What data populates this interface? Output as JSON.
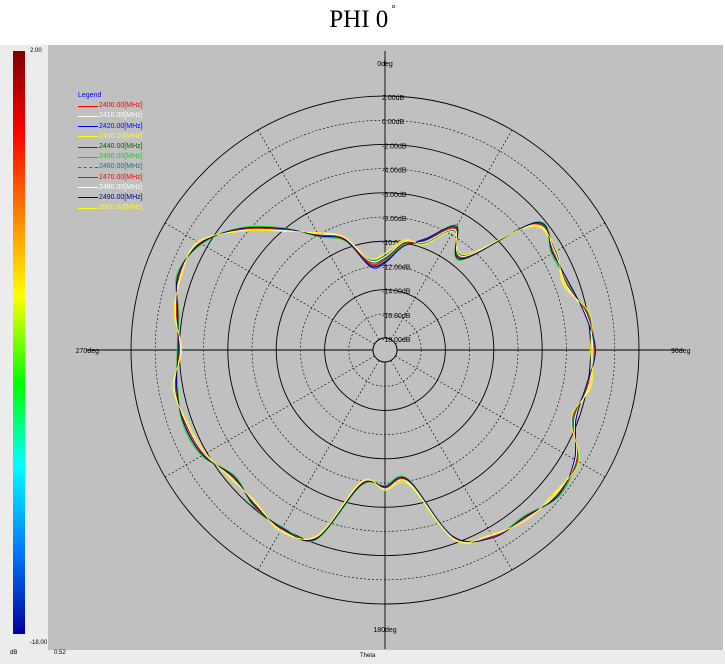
{
  "header": {
    "title": "PHI 0",
    "degree_symbol": "°"
  },
  "scale": {
    "max_label": "2.00",
    "min_label": "-18.00",
    "unit_label": "dB",
    "bottom_value": "0.52"
  },
  "footer": {
    "axis_label": "Theta"
  },
  "chart_data": {
    "type": "polar-line",
    "title": "PHI 0",
    "theta_label": "Theta",
    "angle_labels": [
      "0deg",
      "90deg",
      "180deg",
      "270deg"
    ],
    "r_axis_labels": [
      "2.00dB",
      "0.00dB",
      "-2.00dB",
      "-4.00dB",
      "-6.00dB",
      "-8.00dB",
      "-10.00dB",
      "-12.00dB",
      "-14.00dB",
      "-16.00dB",
      "-18.00dB"
    ],
    "r_range": [
      -18,
      2
    ],
    "grid": true,
    "legend": {
      "title": "Legend",
      "placement": "top-left"
    },
    "theta_deg": [
      0,
      10,
      20,
      30,
      40,
      50,
      60,
      70,
      80,
      90,
      100,
      110,
      120,
      130,
      140,
      150,
      160,
      170,
      180,
      190,
      200,
      210,
      220,
      230,
      240,
      250,
      260,
      270,
      280,
      290,
      300,
      310,
      320,
      330,
      340,
      350
    ],
    "series": [
      {
        "name": "2400.00[MHz]",
        "color": "#ff0000",
        "values": [
          -11.5,
          -10,
          -9.5,
          -7.4,
          -9,
          -2.8,
          -2.8,
          -3,
          -2,
          -1.8,
          -1.9,
          -2.4,
          -0.7,
          -0.4,
          -0.9,
          -1.2,
          -2.5,
          -8,
          -7.6,
          -7.8,
          -2.5,
          -1.9,
          -2.3,
          -2.6,
          -1.7,
          -1.4,
          -1.4,
          -2,
          -1.5,
          -0.9,
          -1.3,
          -3.5,
          -6,
          -8,
          -9.2,
          -11.8
        ]
      },
      {
        "name": "2410.00[MHz]",
        "color": "#ffffff",
        "values": [
          -11.3,
          -10.2,
          -9.4,
          -7.6,
          -8.8,
          -2.9,
          -2.7,
          -3.1,
          -2.1,
          -1.7,
          -2,
          -2.3,
          -0.8,
          -0.5,
          -0.8,
          -1.3,
          -2.4,
          -7.9,
          -7.5,
          -7.9,
          -2.6,
          -1.8,
          -2.4,
          -2.5,
          -1.8,
          -1.5,
          -1.3,
          -2.1,
          -1.4,
          -1,
          -1.2,
          -3.6,
          -6.1,
          -7.9,
          -9.1,
          -11.7
        ]
      },
      {
        "name": "2420.00[MHz]",
        "color": "#0000ff",
        "values": [
          -11.8,
          -10.3,
          -9.2,
          -7.2,
          -9.2,
          -2.6,
          -3,
          -2.8,
          -2.2,
          -1.6,
          -2.1,
          -2.2,
          -0.9,
          -0.3,
          -1,
          -1.1,
          -2.6,
          -8.1,
          -7.7,
          -7.7,
          -2.4,
          -2,
          -2.2,
          -2.7,
          -1.6,
          -1.3,
          -1.5,
          -1.9,
          -1.6,
          -0.8,
          -1.4,
          -3.4,
          -5.9,
          -8.1,
          -9.3,
          -12
        ]
      },
      {
        "name": "2430.00[MHz]",
        "color": "#ffff00",
        "values": [
          -11,
          -9.8,
          -9.6,
          -7.5,
          -8.9,
          -3,
          -2.9,
          -3.2,
          -1.9,
          -1.9,
          -1.8,
          -2.5,
          -0.6,
          -0.6,
          -0.8,
          -1.3,
          -2.3,
          -7.8,
          -7.5,
          -7.9,
          -2.6,
          -1.8,
          -2.4,
          -2.5,
          -1.8,
          -1.5,
          -1.3,
          -2.1,
          -1.4,
          -1,
          -1.2,
          -3.6,
          -6.1,
          -7.9,
          -9.1,
          -11.5
        ]
      },
      {
        "name": "2440.00[MHz]",
        "color": "#006400",
        "values": [
          -11.4,
          -10.1,
          -9.5,
          -7.3,
          -9.1,
          -2.7,
          -2.8,
          -3,
          -2,
          -1.7,
          -2,
          -2.4,
          -0.7,
          -0.4,
          -0.9,
          -1.2,
          -2.5,
          -8,
          -7.6,
          -7.8,
          -2.5,
          -1.9,
          -2.3,
          -2.6,
          -1.7,
          -1.4,
          -1.4,
          -2,
          -1.5,
          -0.9,
          -1.3,
          -3.5,
          -6,
          -8,
          -9.2,
          -11.6
        ]
      },
      {
        "name": "2450.00[MHz]",
        "color": "#00e000",
        "values": [
          -11.6,
          -10.2,
          -9.3,
          -7.1,
          -9.3,
          -2.5,
          -3.1,
          -2.9,
          -2.1,
          -1.6,
          -2.1,
          -2.3,
          -0.8,
          -0.2,
          -1.1,
          -1.1,
          -2.6,
          -8.2,
          -7.8,
          -7.6,
          -2.3,
          -2.1,
          -2.1,
          -2.8,
          -1.5,
          -1.2,
          -1.6,
          -1.8,
          -1.7,
          -0.7,
          -1.5,
          -3.3,
          -5.8,
          -8.2,
          -9.4,
          -11.9
        ]
      },
      {
        "name": "2460.00[MHz]",
        "color": "#008080",
        "values": [
          -11.2,
          -10,
          -9.6,
          -7.6,
          -8.8,
          -2.9,
          -2.7,
          -3.1,
          -1.9,
          -1.8,
          -1.9,
          -2.5,
          -0.6,
          -0.5,
          -0.8,
          -1.3,
          -2.4,
          -7.9,
          -7.5,
          -7.9,
          -2.6,
          -1.8,
          -2.4,
          -2.5,
          -1.8,
          -1.5,
          -1.3,
          -2.1,
          -1.4,
          -1,
          -1.2,
          -3.6,
          -6.1,
          -7.9,
          -9.1,
          -11.4
        ]
      },
      {
        "name": "2470.00[MHz]",
        "color": "#ff0000",
        "values": [
          -11.5,
          -10.1,
          -9.4,
          -7.3,
          -9,
          -2.8,
          -2.9,
          -3,
          -2,
          -1.7,
          -2,
          -2.4,
          -0.7,
          -0.4,
          -0.9,
          -1.2,
          -2.5,
          -8,
          -7.6,
          -7.8,
          -2.5,
          -1.9,
          -2.3,
          -2.6,
          -1.7,
          -1.4,
          -1.4,
          -2,
          -1.5,
          -0.9,
          -1.3,
          -3.5,
          -6,
          -8,
          -9.2,
          -11.7
        ]
      },
      {
        "name": "2480.00[MHz]",
        "color": "#ffffff",
        "values": [
          -11.3,
          -9.9,
          -9.5,
          -7.5,
          -8.9,
          -2.9,
          -2.8,
          -3.1,
          -2.1,
          -1.8,
          -1.9,
          -2.3,
          -0.8,
          -0.5,
          -0.8,
          -1.3,
          -2.4,
          -7.9,
          -7.5,
          -7.9,
          -2.6,
          -1.8,
          -2.4,
          -2.5,
          -1.8,
          -1.5,
          -1.3,
          -2.1,
          -1.4,
          -1,
          -1.2,
          -3.6,
          -6.1,
          -7.9,
          -9.1,
          -11.5
        ]
      },
      {
        "name": "2490.00[MHz]",
        "color": "#000080",
        "values": [
          -11.7,
          -10.3,
          -9.3,
          -7.2,
          -9.2,
          -2.6,
          -3,
          -2.8,
          -2.2,
          -1.6,
          -2.1,
          -2.2,
          -0.9,
          -0.3,
          -1,
          -1.1,
          -2.6,
          -8.1,
          -7.7,
          -7.7,
          -2.4,
          -2,
          -2.2,
          -2.7,
          -1.6,
          -1.3,
          -1.5,
          -1.9,
          -1.6,
          -0.8,
          -1.4,
          -3.4,
          -5.9,
          -8.1,
          -9.3,
          -11.9
        ]
      },
      {
        "name": "2500.00[MHz]",
        "color": "#ffff00",
        "values": [
          -11,
          -9.7,
          -9.7,
          -7.7,
          -8.7,
          -3.1,
          -2.6,
          -3.3,
          -1.8,
          -2,
          -1.7,
          -2.6,
          -0.5,
          -0.7,
          -0.7,
          -1.4,
          -2.3,
          -7.7,
          -7.4,
          -8,
          -2.7,
          -1.7,
          -2.5,
          -2.4,
          -1.9,
          -1.6,
          -1.2,
          -2.2,
          -1.3,
          -1.1,
          -1.1,
          -3.7,
          -6.2,
          -7.8,
          -9,
          -11.3
        ]
      }
    ]
  }
}
